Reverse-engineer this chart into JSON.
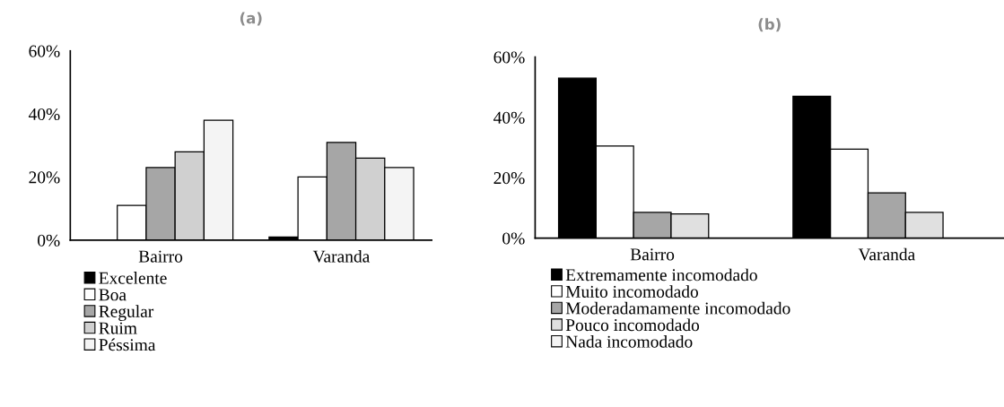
{
  "chart_data": [
    {
      "type": "bar",
      "title": "(a)",
      "categories": [
        "Bairro",
        "Varanda"
      ],
      "ylim": [
        0,
        60
      ],
      "yticks": [
        {
          "value": 0,
          "label": "0%"
        },
        {
          "value": 20,
          "label": "20%"
        },
        {
          "value": 40,
          "label": "40%"
        },
        {
          "value": 60,
          "label": "60%"
        }
      ],
      "legend": "bottom left",
      "grid": false,
      "series": [
        {
          "name": "Excelente",
          "color": "#000000",
          "values": [
            0,
            1
          ]
        },
        {
          "name": "Boa",
          "color": "#ffffff",
          "values": [
            11,
            20
          ]
        },
        {
          "name": "Regular",
          "color": "#a6a6a6",
          "values": [
            23,
            31
          ]
        },
        {
          "name": "Ruim",
          "color": "#d0d0d0",
          "values": [
            28,
            26
          ]
        },
        {
          "name": "Péssima",
          "color": "#f4f4f4",
          "values": [
            38,
            23
          ]
        }
      ]
    },
    {
      "type": "bar",
      "title": "(b)",
      "categories": [
        "Bairro",
        "Varanda"
      ],
      "ylim": [
        0,
        60
      ],
      "yticks": [
        {
          "value": 0,
          "label": "0%"
        },
        {
          "value": 20,
          "label": "20%"
        },
        {
          "value": 40,
          "label": "40%"
        },
        {
          "value": 60,
          "label": "60%"
        }
      ],
      "legend": "bottom left",
      "grid": false,
      "series": [
        {
          "name": "Extremamente incomodado",
          "color": "#000000",
          "values": [
            53,
            47
          ]
        },
        {
          "name": "Muito incomodado",
          "color": "#ffffff",
          "values": [
            30.5,
            29.5
          ]
        },
        {
          "name": "Moderadamamente incomodado",
          "color": "#a6a6a6",
          "values": [
            8.5,
            15
          ]
        },
        {
          "name": "Pouco incomodado",
          "color": "#e0e0e0",
          "values": [
            8,
            8.5
          ]
        },
        {
          "name": "Nada incomodado",
          "color": "#f4f4f4",
          "values": [
            0,
            0
          ]
        }
      ]
    }
  ]
}
